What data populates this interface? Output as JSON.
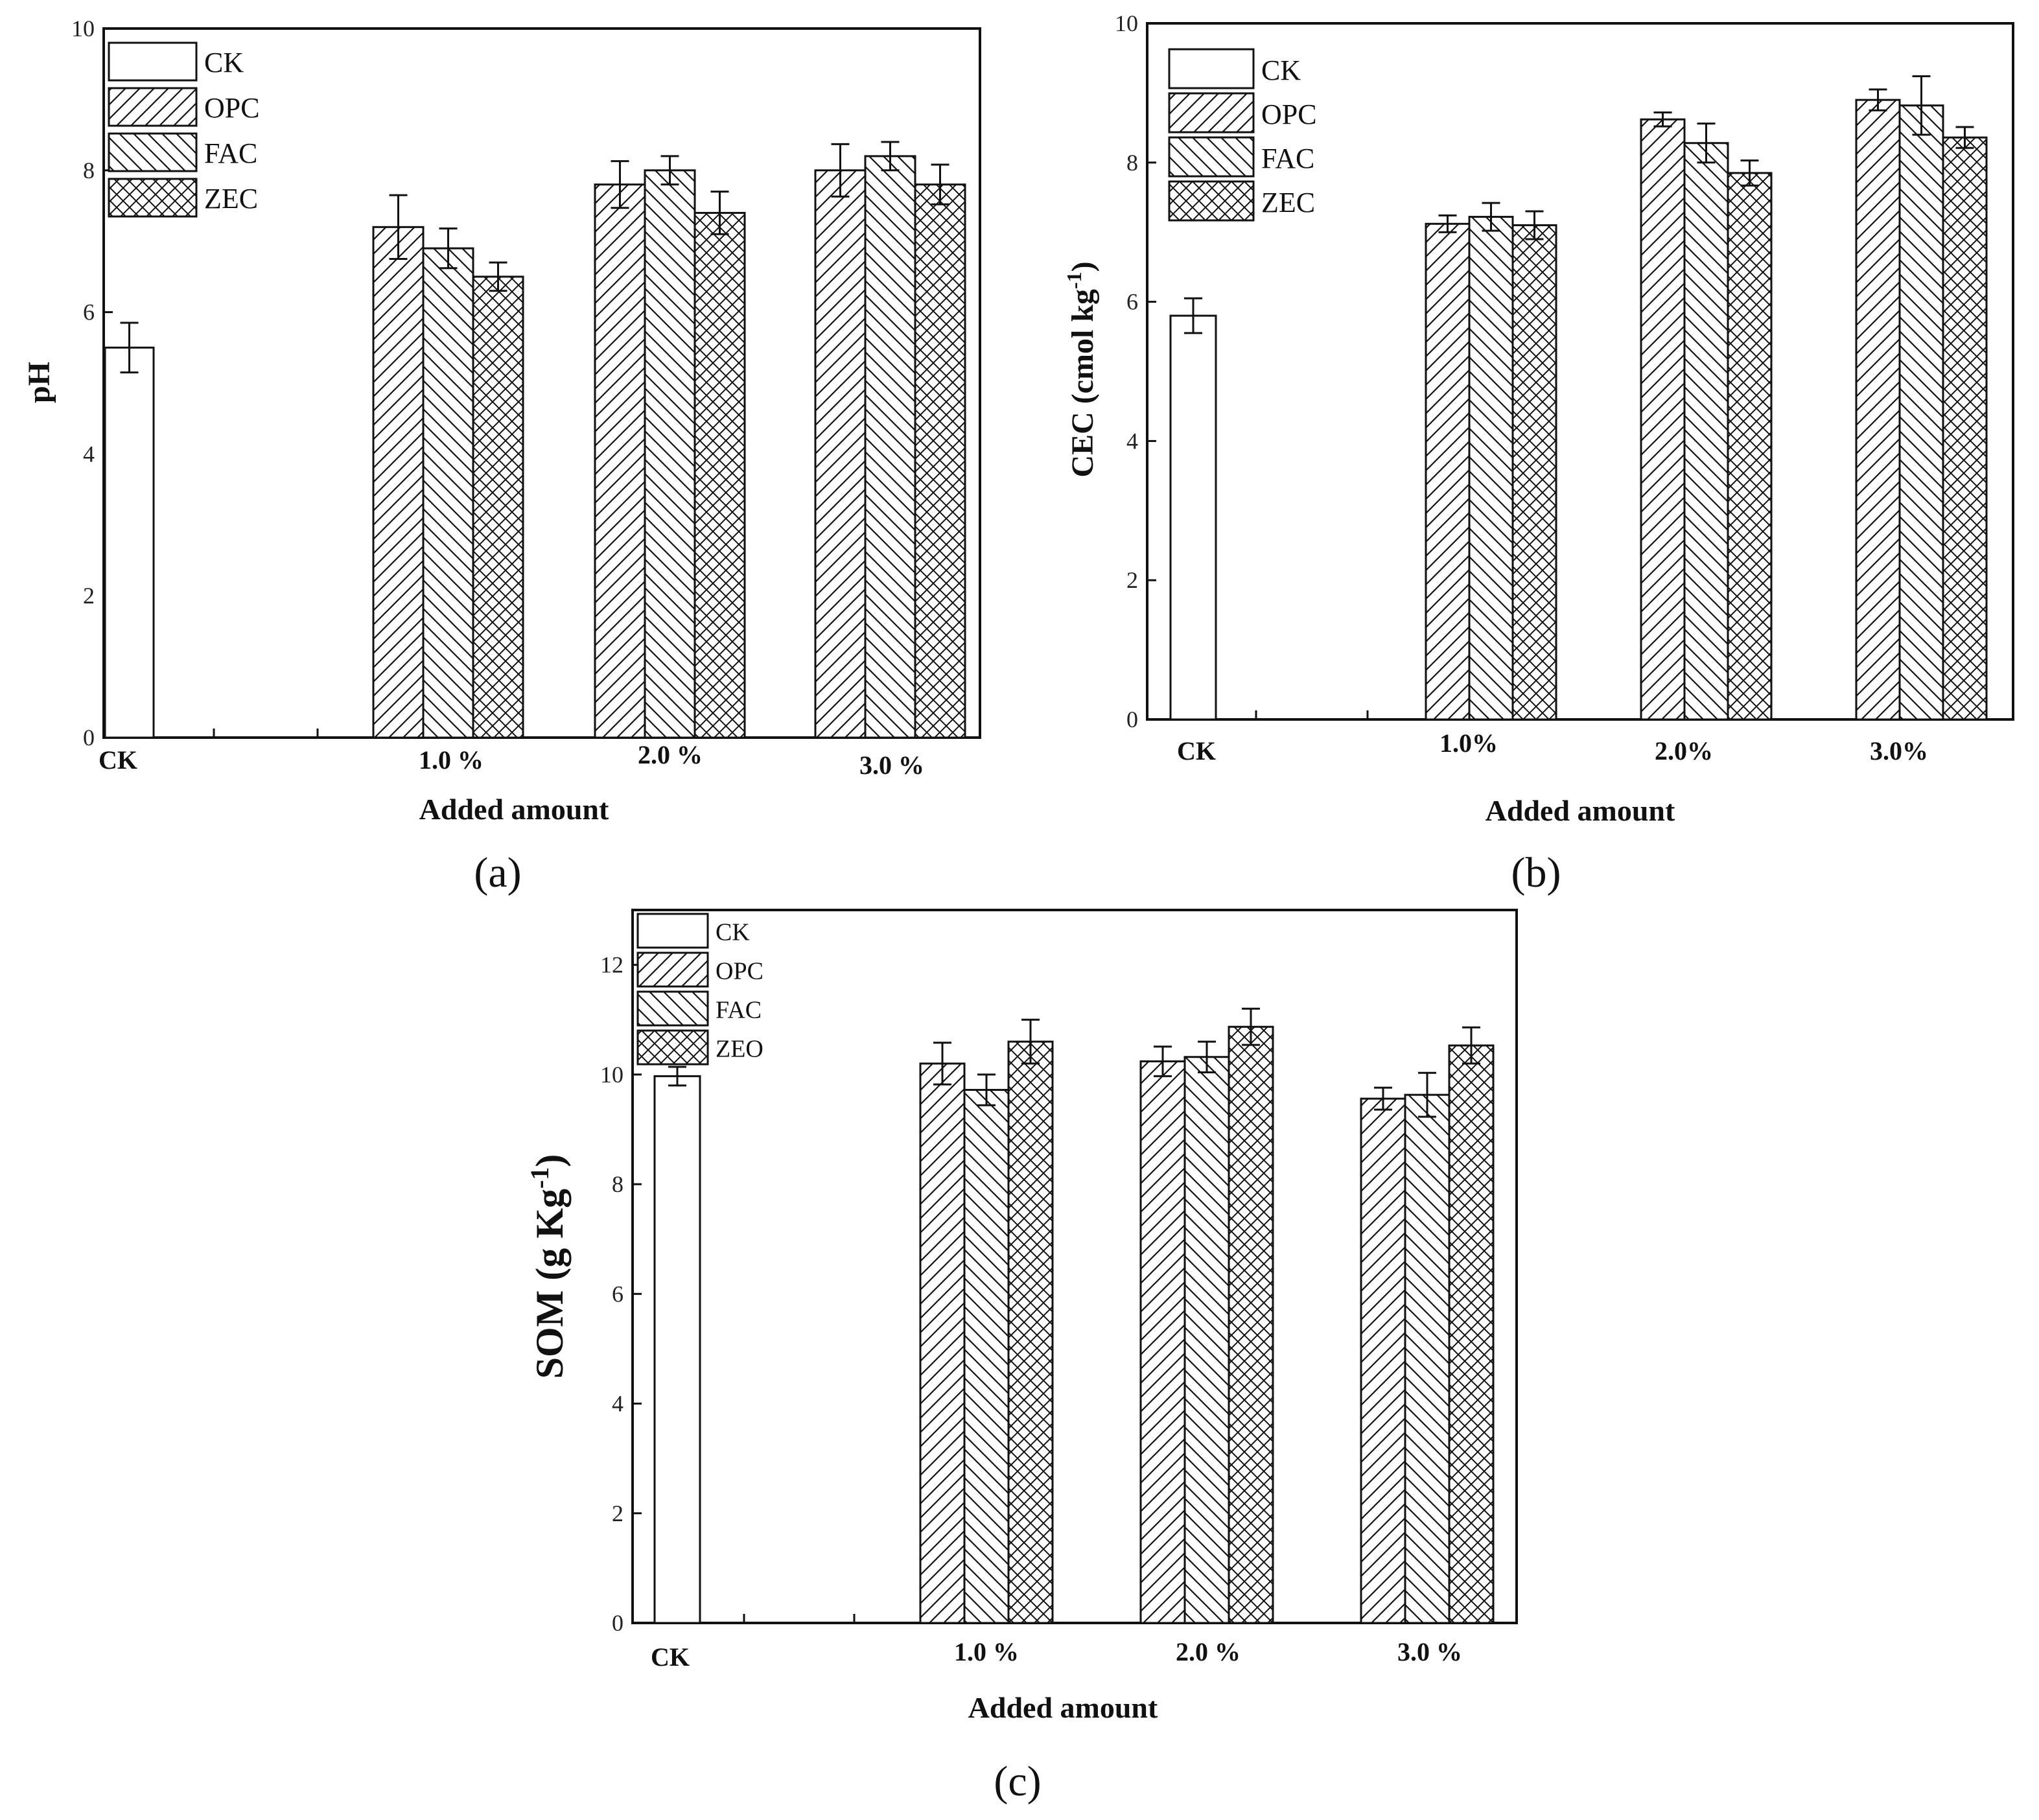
{
  "chart_data": [
    {
      "id": "a",
      "type": "bar",
      "panel_label": "(a)",
      "ylabel": "pH",
      "xlabel": "Added amount",
      "ylim": [
        0,
        10
      ],
      "yticks": [
        "0",
        "2",
        "4",
        "6",
        "8",
        "10"
      ],
      "categories": [
        "CK",
        "1.0 %",
        "2.0 %",
        "3.0 %"
      ],
      "legend": [
        "CK",
        "OPC",
        "FAC",
        "ZEC"
      ],
      "legend_position": "top-left",
      "series": [
        {
          "name": "CK",
          "pattern": "none",
          "values": [
            5.5,
            null,
            null,
            null
          ],
          "errors": [
            0.35,
            null,
            null,
            null
          ]
        },
        {
          "name": "OPC",
          "pattern": "diag-forward",
          "values": [
            null,
            7.2,
            7.8,
            8.0
          ],
          "errors": [
            null,
            0.45,
            0.33,
            0.37
          ]
        },
        {
          "name": "FAC",
          "pattern": "diag-back",
          "values": [
            null,
            6.9,
            8.0,
            8.2
          ],
          "errors": [
            null,
            0.28,
            0.2,
            0.2
          ]
        },
        {
          "name": "ZEC",
          "pattern": "cross",
          "values": [
            null,
            6.5,
            7.4,
            7.8
          ],
          "errors": [
            null,
            0.2,
            0.3,
            0.28
          ]
        }
      ]
    },
    {
      "id": "b",
      "type": "bar",
      "panel_label": "(b)",
      "ylabel": "CEC (cmol kg",
      "ylabel_sup": "-1",
      "ylabel_tail": ")",
      "xlabel": "Added amount",
      "ylim": [
        0,
        10
      ],
      "yticks": [
        "0",
        "2",
        "4",
        "6",
        "8",
        "10"
      ],
      "categories": [
        "CK",
        "1.0%",
        "2.0%",
        "3.0%"
      ],
      "legend": [
        "CK",
        "OPC",
        "FAC",
        "ZEC"
      ],
      "legend_position": "top-left",
      "series": [
        {
          "name": "CK",
          "pattern": "none",
          "values": [
            5.8,
            null,
            null,
            null
          ],
          "errors": [
            0.25,
            null,
            null,
            null
          ]
        },
        {
          "name": "OPC",
          "pattern": "diag-forward",
          "values": [
            null,
            7.12,
            8.62,
            8.9
          ],
          "errors": [
            null,
            0.12,
            0.1,
            0.15
          ]
        },
        {
          "name": "FAC",
          "pattern": "diag-back",
          "values": [
            null,
            7.22,
            8.28,
            8.82
          ],
          "errors": [
            null,
            0.2,
            0.28,
            0.42
          ]
        },
        {
          "name": "ZEC",
          "pattern": "cross",
          "values": [
            null,
            7.1,
            7.85,
            8.36
          ],
          "errors": [
            null,
            0.2,
            0.18,
            0.15
          ]
        }
      ]
    },
    {
      "id": "c",
      "type": "bar",
      "panel_label": "(c)",
      "ylabel": "SOM (g Kg",
      "ylabel_sup": "-1",
      "ylabel_tail": ")",
      "xlabel": "Added amount",
      "ylim": [
        0,
        13
      ],
      "yticks": [
        "0",
        "2",
        "4",
        "6",
        "8",
        "10",
        "12"
      ],
      "categories": [
        "CK",
        "1.0 %",
        "2.0 %",
        "3.0 %"
      ],
      "legend": [
        "CK",
        "OPC",
        "FAC",
        "ZEO"
      ],
      "legend_position": "top-left",
      "series": [
        {
          "name": "CK",
          "pattern": "none",
          "values": [
            9.97,
            null,
            null,
            null
          ],
          "errors": [
            0.17,
            null,
            null,
            null
          ]
        },
        {
          "name": "OPC",
          "pattern": "diag-forward",
          "values": [
            null,
            10.2,
            10.24,
            9.56
          ],
          "errors": [
            null,
            0.38,
            0.27,
            0.2
          ]
        },
        {
          "name": "FAC",
          "pattern": "diag-back",
          "values": [
            null,
            9.72,
            10.32,
            9.63
          ],
          "errors": [
            null,
            0.28,
            0.28,
            0.4
          ]
        },
        {
          "name": "ZEO",
          "pattern": "cross",
          "values": [
            null,
            10.6,
            10.87,
            10.53
          ],
          "errors": [
            null,
            0.4,
            0.33,
            0.33
          ]
        }
      ]
    }
  ]
}
